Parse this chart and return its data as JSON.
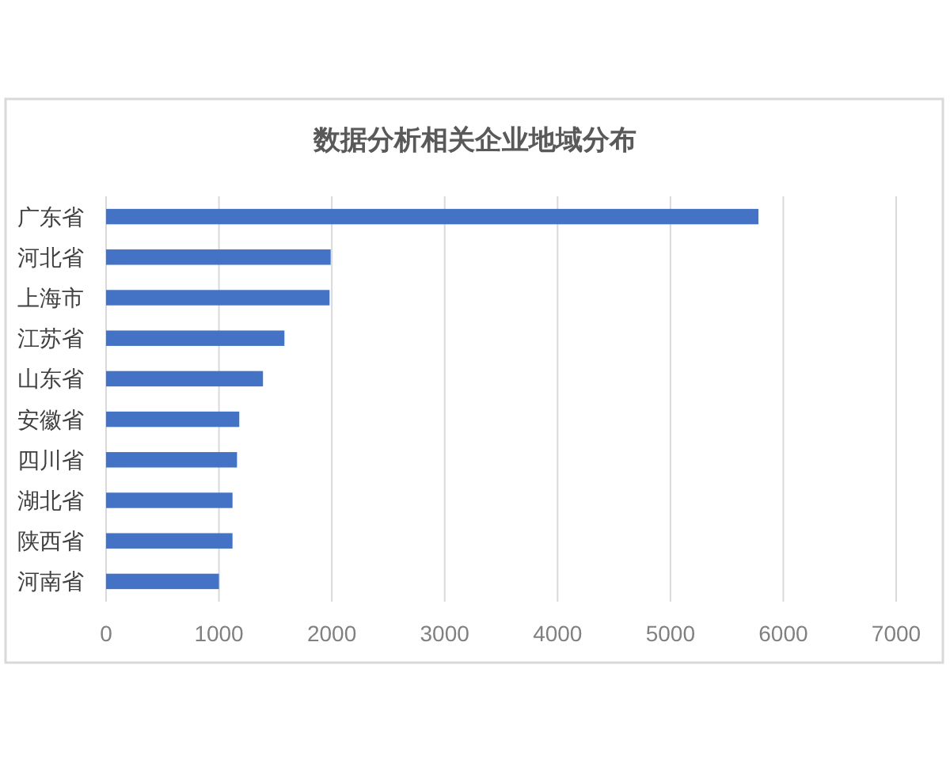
{
  "chart_data": {
    "type": "bar",
    "orientation": "horizontal",
    "title": "数据分析相关企业地域分布",
    "categories": [
      "广东省",
      "河北省",
      "上海市",
      "江苏省",
      "山东省",
      "安徽省",
      "四川省",
      "湖北省",
      "陕西省",
      "河南省"
    ],
    "values": [
      5780,
      1990,
      1980,
      1580,
      1390,
      1180,
      1160,
      1120,
      1120,
      1000
    ],
    "color": "#4472c4",
    "xlim": [
      0,
      7000
    ],
    "xticks": [
      0,
      1000,
      2000,
      3000,
      4000,
      5000,
      6000,
      7000
    ],
    "grid": "x"
  }
}
